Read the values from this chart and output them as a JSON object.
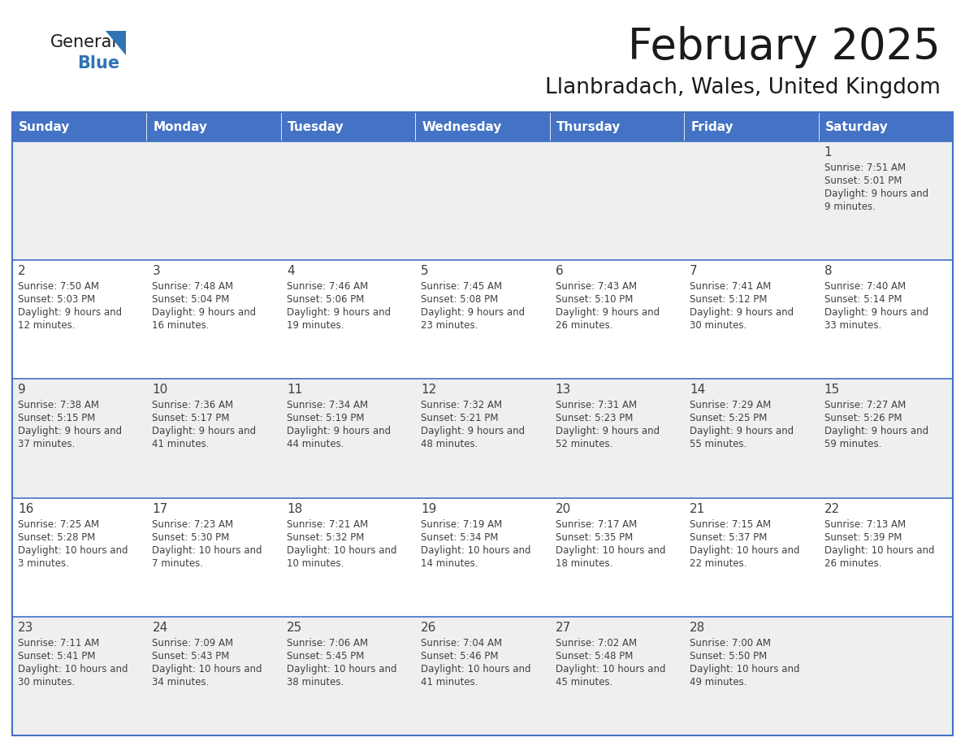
{
  "title": "February 2025",
  "subtitle": "Llanbradach, Wales, United Kingdom",
  "days_of_week": [
    "Sunday",
    "Monday",
    "Tuesday",
    "Wednesday",
    "Thursday",
    "Friday",
    "Saturday"
  ],
  "header_bg": "#4472C4",
  "header_text": "#FFFFFF",
  "cell_bg_light": "#EFEFEF",
  "cell_bg_white": "#FFFFFF",
  "border_color": "#4472C4",
  "text_color": "#404040",
  "title_color": "#1a1a1a",
  "logo_text_color": "#1a1a1a",
  "logo_blue_color": "#2E74B5",
  "triangle_color": "#2E74B5",
  "calendar_data": [
    [
      null,
      null,
      null,
      null,
      null,
      null,
      {
        "day": 1,
        "sunrise": "7:51 AM",
        "sunset": "5:01 PM",
        "daylight": "9 hours and 9 minutes."
      }
    ],
    [
      {
        "day": 2,
        "sunrise": "7:50 AM",
        "sunset": "5:03 PM",
        "daylight": "9 hours and 12 minutes."
      },
      {
        "day": 3,
        "sunrise": "7:48 AM",
        "sunset": "5:04 PM",
        "daylight": "9 hours and 16 minutes."
      },
      {
        "day": 4,
        "sunrise": "7:46 AM",
        "sunset": "5:06 PM",
        "daylight": "9 hours and 19 minutes."
      },
      {
        "day": 5,
        "sunrise": "7:45 AM",
        "sunset": "5:08 PM",
        "daylight": "9 hours and 23 minutes."
      },
      {
        "day": 6,
        "sunrise": "7:43 AM",
        "sunset": "5:10 PM",
        "daylight": "9 hours and 26 minutes."
      },
      {
        "day": 7,
        "sunrise": "7:41 AM",
        "sunset": "5:12 PM",
        "daylight": "9 hours and 30 minutes."
      },
      {
        "day": 8,
        "sunrise": "7:40 AM",
        "sunset": "5:14 PM",
        "daylight": "9 hours and 33 minutes."
      }
    ],
    [
      {
        "day": 9,
        "sunrise": "7:38 AM",
        "sunset": "5:15 PM",
        "daylight": "9 hours and 37 minutes."
      },
      {
        "day": 10,
        "sunrise": "7:36 AM",
        "sunset": "5:17 PM",
        "daylight": "9 hours and 41 minutes."
      },
      {
        "day": 11,
        "sunrise": "7:34 AM",
        "sunset": "5:19 PM",
        "daylight": "9 hours and 44 minutes."
      },
      {
        "day": 12,
        "sunrise": "7:32 AM",
        "sunset": "5:21 PM",
        "daylight": "9 hours and 48 minutes."
      },
      {
        "day": 13,
        "sunrise": "7:31 AM",
        "sunset": "5:23 PM",
        "daylight": "9 hours and 52 minutes."
      },
      {
        "day": 14,
        "sunrise": "7:29 AM",
        "sunset": "5:25 PM",
        "daylight": "9 hours and 55 minutes."
      },
      {
        "day": 15,
        "sunrise": "7:27 AM",
        "sunset": "5:26 PM",
        "daylight": "9 hours and 59 minutes."
      }
    ],
    [
      {
        "day": 16,
        "sunrise": "7:25 AM",
        "sunset": "5:28 PM",
        "daylight": "10 hours and 3 minutes."
      },
      {
        "day": 17,
        "sunrise": "7:23 AM",
        "sunset": "5:30 PM",
        "daylight": "10 hours and 7 minutes."
      },
      {
        "day": 18,
        "sunrise": "7:21 AM",
        "sunset": "5:32 PM",
        "daylight": "10 hours and 10 minutes."
      },
      {
        "day": 19,
        "sunrise": "7:19 AM",
        "sunset": "5:34 PM",
        "daylight": "10 hours and 14 minutes."
      },
      {
        "day": 20,
        "sunrise": "7:17 AM",
        "sunset": "5:35 PM",
        "daylight": "10 hours and 18 minutes."
      },
      {
        "day": 21,
        "sunrise": "7:15 AM",
        "sunset": "5:37 PM",
        "daylight": "10 hours and 22 minutes."
      },
      {
        "day": 22,
        "sunrise": "7:13 AM",
        "sunset": "5:39 PM",
        "daylight": "10 hours and 26 minutes."
      }
    ],
    [
      {
        "day": 23,
        "sunrise": "7:11 AM",
        "sunset": "5:41 PM",
        "daylight": "10 hours and 30 minutes."
      },
      {
        "day": 24,
        "sunrise": "7:09 AM",
        "sunset": "5:43 PM",
        "daylight": "10 hours and 34 minutes."
      },
      {
        "day": 25,
        "sunrise": "7:06 AM",
        "sunset": "5:45 PM",
        "daylight": "10 hours and 38 minutes."
      },
      {
        "day": 26,
        "sunrise": "7:04 AM",
        "sunset": "5:46 PM",
        "daylight": "10 hours and 41 minutes."
      },
      {
        "day": 27,
        "sunrise": "7:02 AM",
        "sunset": "5:48 PM",
        "daylight": "10 hours and 45 minutes."
      },
      {
        "day": 28,
        "sunrise": "7:00 AM",
        "sunset": "5:50 PM",
        "daylight": "10 hours and 49 minutes."
      },
      null
    ]
  ]
}
